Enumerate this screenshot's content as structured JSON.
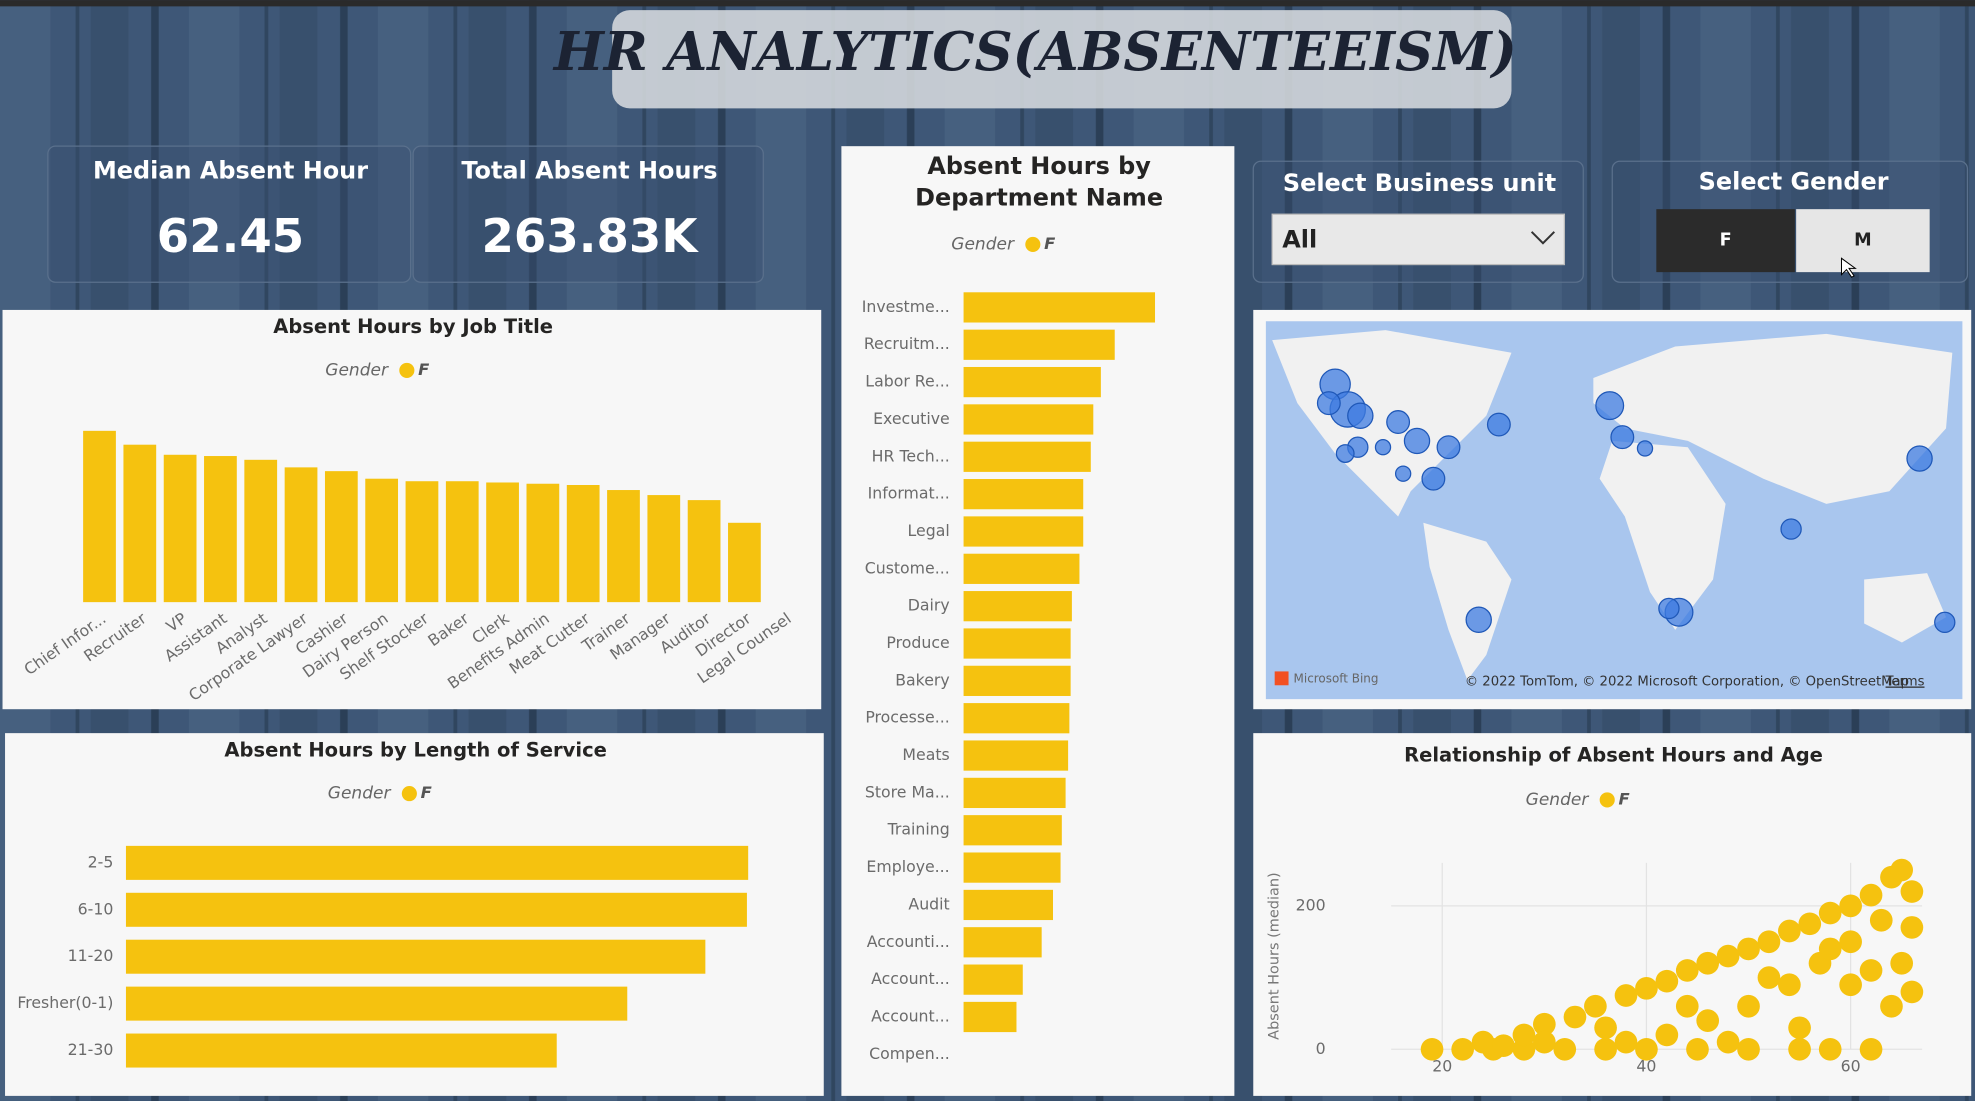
{
  "header": {
    "title": "HR ANALYTICS(ABSENTEEISM)"
  },
  "kpis": [
    {
      "label": "Median Absent Hour",
      "value": "62.45"
    },
    {
      "label": "Total Absent Hours",
      "value": "263.83K"
    }
  ],
  "slicers": {
    "business_unit": {
      "label": "Select Business unit",
      "selected": "All"
    },
    "gender": {
      "label": "Select Gender",
      "options": [
        "F",
        "M"
      ]
    }
  },
  "map": {
    "provider": "Microsoft Bing",
    "attribution": "© 2022 TomTom, © 2022 Microsoft Corporation, © OpenStreetMap",
    "terms": "Terms"
  },
  "chart_data": [
    {
      "type": "bar",
      "orientation": "vertical",
      "title": "Absent Hours by Job Title",
      "legend_title": "Gender",
      "categories": [
        "Chief Infor...",
        "Recruiter",
        "VP",
        "Assistant",
        "Analyst",
        "Corporate Lawyer",
        "Cashier",
        "Dairy Person",
        "Shelf Stocker",
        "Baker",
        "Clerk",
        "Benefits Admin",
        "Meat Cutter",
        "Trainer",
        "Manager",
        "Auditor",
        "Director",
        "Legal Counsel"
      ],
      "series": [
        {
          "name": "F",
          "color": "#f5c20f",
          "values": [
            13600,
            12500,
            11700,
            11600,
            11300,
            10700,
            10400,
            9800,
            9600,
            9600,
            9500,
            9400,
            9300,
            8900,
            8500,
            8100,
            6300,
            null
          ]
        }
      ]
    },
    {
      "type": "bar",
      "orientation": "horizontal",
      "title": "Absent Hours by Department Name",
      "legend_title": "Gender",
      "categories": [
        "Investme...",
        "Recruitm...",
        "Labor Re...",
        "Executive",
        "HR Tech...",
        "Informat...",
        "Legal",
        "Custome...",
        "Dairy",
        "Produce",
        "Bakery",
        "Processe...",
        "Meats",
        "Store Ma...",
        "Training",
        "Employe...",
        "Audit",
        "Accounti...",
        "Account...",
        "Account...",
        "Compen..."
      ],
      "series": [
        {
          "name": "F",
          "color": "#f5c20f",
          "values": [
            15200,
            12000,
            10900,
            10300,
            10100,
            9500,
            9500,
            9200,
            8600,
            8500,
            8500,
            8400,
            8300,
            8100,
            7800,
            7700,
            7100,
            6200,
            4700,
            4200,
            null
          ]
        }
      ]
    },
    {
      "type": "bar",
      "orientation": "horizontal",
      "title": "Absent Hours by Length of Service",
      "legend_title": "Gender",
      "categories": [
        "2-5",
        "6-10",
        "11-20",
        "Fresher(0-1)",
        "21-30"
      ],
      "series": [
        {
          "name": "F",
          "color": "#f5c20f",
          "values": [
            49400,
            49300,
            46000,
            39800,
            34200
          ]
        }
      ]
    },
    {
      "type": "scatter",
      "title": "Relationship of Absent Hours and Age",
      "legend_title": "Gender",
      "y_label": "Absent Hours (median)",
      "xlim": [
        15,
        67
      ],
      "ylim": [
        0,
        260
      ],
      "xticks": [
        20,
        40,
        60
      ],
      "yticks": [
        0,
        200
      ],
      "series": [
        {
          "name": "F",
          "color": "#f5c20f",
          "x": [
            19,
            22,
            25,
            28,
            32,
            36,
            40,
            45,
            50,
            55,
            58,
            62,
            24,
            28,
            30,
            33,
            35,
            38,
            40,
            42,
            44,
            46,
            48,
            50,
            52,
            54,
            56,
            58,
            60,
            62,
            64,
            65,
            66,
            63,
            60,
            57,
            54,
            50,
            46,
            42,
            38,
            65,
            66,
            64,
            48,
            55,
            60,
            66,
            44,
            52,
            58,
            62,
            36,
            30,
            26
          ],
          "values": [
            0,
            0,
            0,
            0,
            0,
            0,
            0,
            0,
            0,
            0,
            0,
            0,
            10,
            20,
            35,
            45,
            60,
            75,
            85,
            95,
            110,
            120,
            130,
            140,
            150,
            165,
            175,
            190,
            200,
            215,
            240,
            250,
            220,
            180,
            150,
            120,
            90,
            60,
            40,
            20,
            10,
            120,
            80,
            60,
            10,
            30,
            90,
            170,
            60,
            100,
            140,
            110,
            30,
            10,
            5
          ]
        }
      ]
    }
  ]
}
